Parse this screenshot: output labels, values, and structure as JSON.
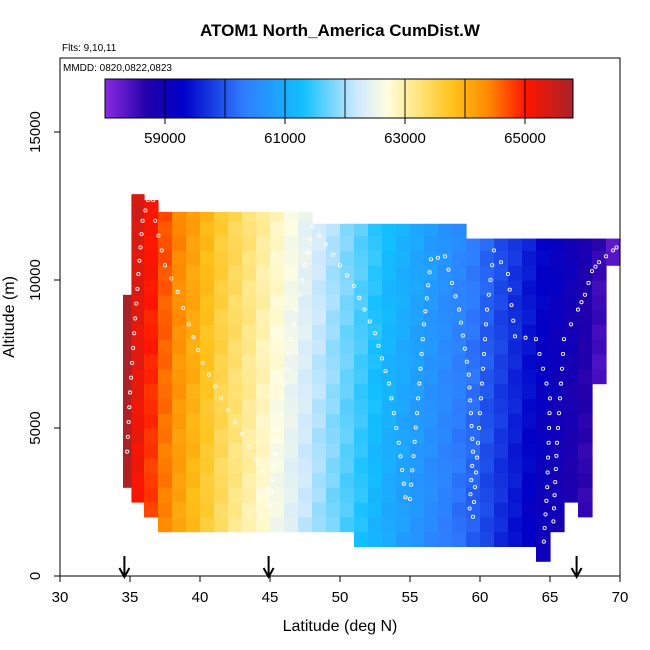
{
  "chart_data": {
    "type": "heatmap",
    "title": "ATOM1 North_America CumDist.W",
    "flights_label": "Flts: 9,10,11",
    "dates_label": "MMDD: 0820,0822,0823",
    "xlabel": "Latitude (deg N)",
    "ylabel": "Altitude (m)",
    "xlim": [
      30,
      70
    ],
    "ylim": [
      0,
      17500
    ],
    "x_ticks": [
      30,
      35,
      40,
      45,
      50,
      55,
      60,
      65,
      70
    ],
    "x_tick_labels": [
      "30",
      "35",
      "40",
      "45",
      "50",
      "55",
      "60",
      "65",
      "70"
    ],
    "y_ticks": [
      0,
      5000,
      10000,
      15000
    ],
    "y_tick_labels": [
      "0",
      "5000",
      "10000",
      "15000"
    ],
    "colorbar": {
      "min": 58000,
      "max": 65800,
      "tick_values": [
        59000,
        61000,
        63000,
        65000
      ],
      "tick_labels": [
        "59000",
        "61000",
        "63000",
        "65000"
      ],
      "divider_values": [
        60000,
        62000,
        64000
      ]
    },
    "color_stops": [
      {
        "v": 58000,
        "c": "#8a2be2"
      },
      {
        "v": 58700,
        "c": "#2200aa"
      },
      {
        "v": 59300,
        "c": "#0000c8"
      },
      {
        "v": 60300,
        "c": "#2f7cff"
      },
      {
        "v": 61300,
        "c": "#12c0ff"
      },
      {
        "v": 62200,
        "c": "#cfe9ff"
      },
      {
        "v": 62700,
        "c": "#fffde0"
      },
      {
        "v": 63200,
        "c": "#ffe680"
      },
      {
        "v": 63800,
        "c": "#ffc21a"
      },
      {
        "v": 64400,
        "c": "#ff8800"
      },
      {
        "v": 65000,
        "c": "#ff1500"
      },
      {
        "v": 65800,
        "c": "#a82228"
      }
    ],
    "columns": [
      {
        "lat0": 34.5,
        "lat1": 35.1,
        "alt0": 3000,
        "alt1": 9500,
        "v": 65800
      },
      {
        "lat0": 35.1,
        "lat1": 36.0,
        "alt0": 2500,
        "alt1": 12900,
        "v": 65200
      },
      {
        "lat0": 36.0,
        "lat1": 37.0,
        "alt0": 2000,
        "alt1": 12700,
        "v": 64900
      },
      {
        "lat0": 37.0,
        "lat1": 38.0,
        "alt0": 1500,
        "alt1": 12300,
        "v": 64550
      },
      {
        "lat0": 38.0,
        "lat1": 39.0,
        "alt0": 1500,
        "alt1": 12300,
        "v": 64250
      },
      {
        "lat0": 39.0,
        "lat1": 40.0,
        "alt0": 1500,
        "alt1": 12300,
        "v": 64000
      },
      {
        "lat0": 40.0,
        "lat1": 41.0,
        "alt0": 1500,
        "alt1": 12300,
        "v": 63750
      },
      {
        "lat0": 41.0,
        "lat1": 42.0,
        "alt0": 1500,
        "alt1": 12300,
        "v": 63500
      },
      {
        "lat0": 42.0,
        "lat1": 43.0,
        "alt0": 1500,
        "alt1": 12300,
        "v": 63300
      },
      {
        "lat0": 43.0,
        "lat1": 44.0,
        "alt0": 1500,
        "alt1": 12300,
        "v": 63100
      },
      {
        "lat0": 44.0,
        "lat1": 45.0,
        "alt0": 1500,
        "alt1": 12300,
        "v": 62900
      },
      {
        "lat0": 45.0,
        "lat1": 46.0,
        "alt0": 1500,
        "alt1": 12300,
        "v": 62700
      },
      {
        "lat0": 46.0,
        "lat1": 47.0,
        "alt0": 1500,
        "alt1": 12300,
        "v": 62500
      },
      {
        "lat0": 47.0,
        "lat1": 48.0,
        "alt0": 1500,
        "alt1": 12300,
        "v": 62300
      },
      {
        "lat0": 48.0,
        "lat1": 49.0,
        "alt0": 1500,
        "alt1": 11900,
        "v": 62100
      },
      {
        "lat0": 49.0,
        "lat1": 50.0,
        "alt0": 1500,
        "alt1": 11900,
        "v": 61900
      },
      {
        "lat0": 50.0,
        "lat1": 51.0,
        "alt0": 1500,
        "alt1": 11900,
        "v": 61700
      },
      {
        "lat0": 51.0,
        "lat1": 52.0,
        "alt0": 1000,
        "alt1": 11900,
        "v": 61500
      },
      {
        "lat0": 52.0,
        "lat1": 53.0,
        "alt0": 1000,
        "alt1": 11900,
        "v": 61300
      },
      {
        "lat0": 53.0,
        "lat1": 54.0,
        "alt0": 1000,
        "alt1": 11900,
        "v": 61100
      },
      {
        "lat0": 54.0,
        "lat1": 55.0,
        "alt0": 1000,
        "alt1": 11900,
        "v": 60950
      },
      {
        "lat0": 55.0,
        "lat1": 56.0,
        "alt0": 1000,
        "alt1": 11900,
        "v": 60800
      },
      {
        "lat0": 56.0,
        "lat1": 57.0,
        "alt0": 1000,
        "alt1": 11900,
        "v": 60650
      },
      {
        "lat0": 57.0,
        "lat1": 58.0,
        "alt0": 1000,
        "alt1": 11900,
        "v": 60500
      },
      {
        "lat0": 58.0,
        "lat1": 59.0,
        "alt0": 1000,
        "alt1": 11900,
        "v": 60350
      },
      {
        "lat0": 59.0,
        "lat1": 60.0,
        "alt0": 1000,
        "alt1": 11400,
        "v": 60200
      },
      {
        "lat0": 60.0,
        "lat1": 61.0,
        "alt0": 1000,
        "alt1": 11400,
        "v": 60000
      },
      {
        "lat0": 61.0,
        "lat1": 62.0,
        "alt0": 1000,
        "alt1": 11400,
        "v": 59800
      },
      {
        "lat0": 62.0,
        "lat1": 63.0,
        "alt0": 1000,
        "alt1": 11400,
        "v": 59600
      },
      {
        "lat0": 63.0,
        "lat1": 64.0,
        "alt0": 1000,
        "alt1": 11400,
        "v": 59400
      },
      {
        "lat0": 64.0,
        "lat1": 65.0,
        "alt0": 500,
        "alt1": 11400,
        "v": 59200
      },
      {
        "lat0": 65.0,
        "lat1": 66.0,
        "alt0": 1500,
        "alt1": 11400,
        "v": 59050
      },
      {
        "lat0": 66.0,
        "lat1": 67.0,
        "alt0": 2500,
        "alt1": 11400,
        "v": 58900
      },
      {
        "lat0": 67.0,
        "lat1": 68.0,
        "alt0": 2000,
        "alt1": 11400,
        "v": 58700
      },
      {
        "lat0": 68.0,
        "lat1": 69.0,
        "alt0": 6500,
        "alt1": 11400,
        "v": 58450
      },
      {
        "lat0": 69.0,
        "lat1": 70.0,
        "alt0": 10500,
        "alt1": 11400,
        "v": 58200
      }
    ],
    "vertical_gradient": 150,
    "flight_tracks": [
      [
        [
          34.8,
          4200
        ],
        [
          35.0,
          6200
        ],
        [
          35.3,
          8200
        ],
        [
          35.6,
          10200
        ],
        [
          35.9,
          12000
        ],
        [
          36.3,
          12700
        ],
        [
          37.0,
          12700
        ]
      ],
      [
        [
          36.8,
          12000
        ],
        [
          37.5,
          10500
        ],
        [
          38.4,
          9600
        ],
        [
          39.2,
          8500
        ],
        [
          40.2,
          7200
        ],
        [
          41.5,
          6000
        ],
        [
          43.0,
          4800
        ],
        [
          44.5,
          3500
        ],
        [
          45.0,
          2400
        ]
      ],
      [
        [
          45.0,
          2400
        ],
        [
          45.6,
          5000
        ],
        [
          46.5,
          8000
        ],
        [
          47.5,
          10500
        ],
        [
          48.0,
          11800
        ],
        [
          49.0,
          11200
        ],
        [
          51.0,
          9800
        ],
        [
          52.5,
          8200
        ],
        [
          53.5,
          6500
        ],
        [
          54.2,
          4500
        ],
        [
          54.8,
          2200
        ]
      ],
      [
        [
          55.0,
          2600
        ],
        [
          55.5,
          5500
        ],
        [
          56.0,
          8500
        ],
        [
          56.5,
          10700
        ],
        [
          57.5,
          10800
        ],
        [
          58.5,
          9000
        ],
        [
          59.2,
          6800
        ],
        [
          59.5,
          4200
        ],
        [
          59.2,
          1800
        ]
      ],
      [
        [
          59.5,
          2000
        ],
        [
          60.0,
          5500
        ],
        [
          60.5,
          9000
        ],
        [
          61.0,
          11000
        ],
        [
          62.0,
          10200
        ],
        [
          62.5,
          8100
        ],
        [
          64.0,
          8000
        ],
        [
          65.0,
          6000
        ],
        [
          64.8,
          3000
        ],
        [
          64.5,
          700
        ]
      ],
      [
        [
          65.2,
          1400
        ],
        [
          65.5,
          4500
        ],
        [
          66.0,
          8000
        ],
        [
          67.0,
          9000
        ],
        [
          67.5,
          9500
        ],
        [
          68.0,
          10300
        ],
        [
          68.5,
          10600
        ],
        [
          69.5,
          11000
        ],
        [
          70.0,
          11200
        ]
      ]
    ],
    "arrows": [
      {
        "lat": 34.6,
        "label": "arrow"
      },
      {
        "lat": 44.9,
        "label": "arrow"
      },
      {
        "lat": 66.9,
        "label": "arrow"
      }
    ]
  }
}
